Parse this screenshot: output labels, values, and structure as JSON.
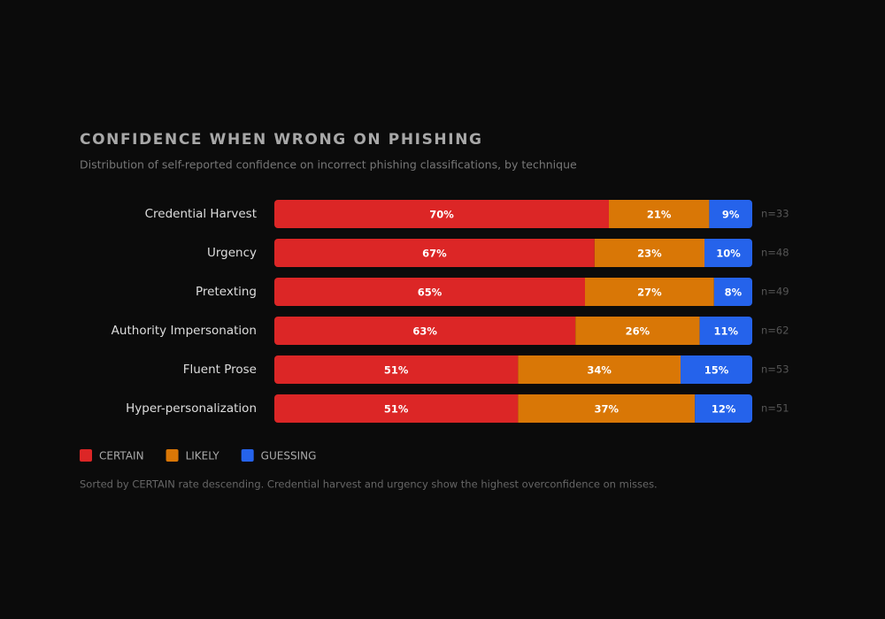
{
  "chart_data": {
    "type": "stacked-bar-horizontal",
    "title": "CONFIDENCE WHEN WRONG ON PHISHING",
    "subtitle": "Distribution of self-reported confidence on incorrect phishing classifications, by technique",
    "categories": [
      "Credential Harvest",
      "Urgency",
      "Pretexting",
      "Authority Impersonation",
      "Fluent Prose",
      "Hyper-personalization"
    ],
    "series": [
      {
        "name": "CERTAIN",
        "color": "#dc2626",
        "values": [
          70,
          67,
          65,
          63,
          51,
          51
        ],
        "value_labels": [
          "70%",
          "67%",
          "65%",
          "63%",
          "51%",
          "51%"
        ]
      },
      {
        "name": "LIKELY",
        "color": "#d97706",
        "values": [
          21,
          23,
          27,
          26,
          34,
          37
        ],
        "value_labels": [
          "21%",
          "23%",
          "27%",
          "26%",
          "34%",
          "37%"
        ]
      },
      {
        "name": "GUESSING",
        "color": "#2563eb",
        "values": [
          9,
          10,
          8,
          11,
          15,
          12
        ],
        "value_labels": [
          "9%",
          "10%",
          "8%",
          "11%",
          "15%",
          "12%"
        ]
      }
    ],
    "sample_labels": [
      "n=33",
      "n=48",
      "n=49",
      "n=62",
      "n=53",
      "n=51"
    ],
    "footnote": "Sorted by CERTAIN rate descending. Credential harvest and urgency show the highest overconfidence on misses."
  }
}
